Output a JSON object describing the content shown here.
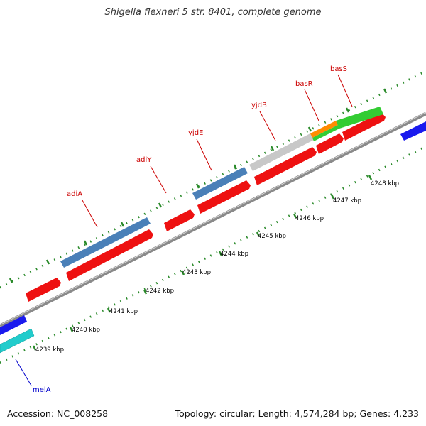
{
  "title": "Shigella flexneri 5 str. 8401, complete genome",
  "footer": {
    "accession": "Accession: NC_008258",
    "summary": "Topology: circular; Length: 4,574,284 bp; Genes: 4,233"
  },
  "gene_labels": [
    "adiA",
    "adiY",
    "yjdE",
    "yjdB",
    "basR",
    "basS",
    "melA"
  ],
  "scale_labels": [
    "4239 kbp",
    "4240 kbp",
    "4241 kbp",
    "4242 kbp",
    "4243 kbp",
    "4244 kbp",
    "4245 kbp",
    "4246 kbp",
    "4247 kbp",
    "4248 kbp"
  ],
  "colors": {
    "backbone": "#8a8a8a",
    "ticks": "#2a8a2a",
    "cds": "#ee1111",
    "steelblue": "#4a80b8",
    "grey": "#c8c8c8",
    "orange": "#ff8c00",
    "green": "#33cc33",
    "blue": "#1a1aee",
    "cyan": "#22cccc",
    "label_red": "#cc0000",
    "label_blue": "#0000cc"
  }
}
